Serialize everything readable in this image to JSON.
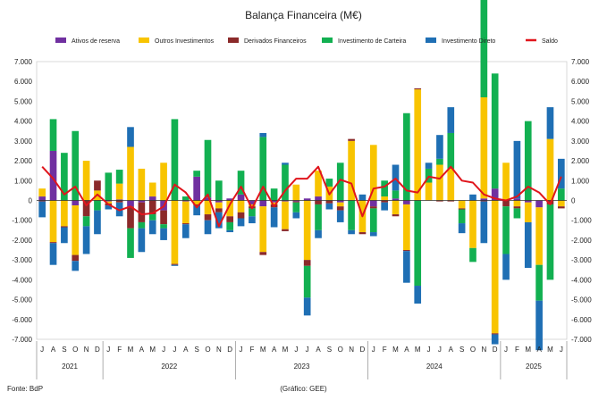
{
  "chart_data": {
    "type": "bar",
    "title": "Balança Financeira (M€)",
    "ylim": [
      -7000,
      7000
    ],
    "y_ticks": [
      "-7.000",
      "-6.000",
      "-5.000",
      "-4.000",
      "-3.000",
      "-2.000",
      "-1.000",
      "0",
      "1.000",
      "2.000",
      "3.000",
      "4.000",
      "5.000",
      "6.000",
      "7.000"
    ],
    "x_month_labels": [
      "J",
      "A",
      "S",
      "O",
      "N",
      "D",
      "J",
      "F",
      "M",
      "A",
      "M",
      "J",
      "J",
      "A",
      "S",
      "O",
      "N",
      "D",
      "J",
      "F",
      "M",
      "A",
      "M",
      "J",
      "J",
      "A",
      "S",
      "O",
      "N",
      "D",
      "J",
      "F",
      "M",
      "A",
      "M",
      "J",
      "J",
      "A",
      "S",
      "O",
      "N",
      "D",
      "J",
      "F",
      "M",
      "A",
      "M",
      "J"
    ],
    "year_labels": [
      "2021",
      "2022",
      "2023",
      "2024",
      "2025"
    ],
    "year_sizes": [
      6,
      12,
      12,
      12,
      6
    ],
    "legend_position": "top",
    "series": [
      {
        "name": "Ativos de reserva",
        "color": "#7030A0",
        "values": [
          200,
          2500,
          0,
          -250,
          0,
          0,
          -50,
          50,
          -300,
          -100,
          200,
          -500,
          0,
          -50,
          1200,
          150,
          -100,
          100,
          300,
          -200,
          -300,
          -100,
          -50,
          -50,
          100,
          200,
          0,
          -100,
          0,
          0,
          -300,
          0,
          100,
          -200,
          0,
          0,
          0,
          0,
          0,
          0,
          100,
          600,
          0,
          100,
          -100,
          -350,
          0,
          0
        ]
      },
      {
        "name": "Outros Investimentos",
        "color": "#F8C400",
        "values": [
          400,
          -2100,
          -1300,
          -2500,
          2000,
          500,
          -100,
          800,
          2700,
          1600,
          700,
          1900,
          -3200,
          -1100,
          -200,
          -700,
          -300,
          -800,
          -600,
          -100,
          -2300,
          -100,
          -1400,
          800,
          -3000,
          1300,
          700,
          -200,
          3000,
          -1600,
          2800,
          200,
          -700,
          -2300,
          5600,
          900,
          1800,
          1600,
          -400,
          -2400,
          5100,
          -6700,
          1900,
          -300,
          -1000,
          -2900,
          3100,
          -300
        ]
      },
      {
        "name": "Derivados Financeiros",
        "color": "#8B2A2A",
        "values": [
          -50,
          -50,
          -50,
          -300,
          -800,
          500,
          -100,
          -100,
          -1100,
          -1000,
          -700,
          -700,
          -50,
          -50,
          -50,
          -300,
          -200,
          -300,
          -300,
          -100,
          -150,
          -150,
          -100,
          -50,
          -300,
          -200,
          -150,
          -200,
          100,
          -100,
          -100,
          -100,
          -100,
          -50,
          50,
          0,
          -50,
          -50,
          -50,
          0,
          -50,
          -50,
          -300,
          -100,
          0,
          0,
          -200,
          -100
        ]
      },
      {
        "name": "Investimento de Carteira",
        "color": "#12B051",
        "values": [
          0,
          1600,
          2400,
          3500,
          -500,
          -500,
          1400,
          700,
          -1500,
          -300,
          -300,
          -200,
          4100,
          200,
          300,
          2900,
          1000,
          -400,
          1200,
          -400,
          3200,
          600,
          1800,
          -500,
          -1600,
          -1300,
          400,
          1900,
          -1500,
          0,
          -1200,
          800,
          400,
          4400,
          -4300,
          700,
          300,
          1800,
          -700,
          -700,
          5000,
          5800,
          -2400,
          -500,
          4000,
          -1800,
          -3800,
          600
        ]
      },
      {
        "name": "Investimento Direto",
        "color": "#1F6FB4",
        "values": [
          -800,
          -1100,
          -800,
          -500,
          -1400,
          -1200,
          -200,
          -700,
          1000,
          -1200,
          -700,
          -600,
          -50,
          -700,
          -500,
          -700,
          -800,
          -100,
          -400,
          -350,
          200,
          -1000,
          100,
          -300,
          -900,
          -400,
          -300,
          -600,
          -200,
          300,
          -200,
          -400,
          1300,
          -1600,
          -900,
          300,
          1200,
          1300,
          -500,
          300,
          -2100,
          -500,
          -1300,
          2900,
          -2300,
          -2500,
          1600,
          1500
        ]
      },
      {
        "name": "Saldo",
        "color": "#E0151C",
        "kind": "line",
        "values": [
          1700,
          1100,
          300,
          700,
          -250,
          300,
          -200,
          -500,
          -300,
          -700,
          -650,
          -300,
          800,
          400,
          -350,
          300,
          -1300,
          -200,
          700,
          -400,
          700,
          -300,
          500,
          1100,
          1100,
          1700,
          300,
          1050,
          850,
          -800,
          600,
          700,
          1100,
          500,
          400,
          1200,
          1100,
          1700,
          1000,
          900,
          300,
          100,
          0,
          200,
          700,
          400,
          -200,
          1200
        ]
      }
    ]
  },
  "notes": {
    "source": "Fonte: BdP",
    "credit": "(Gráfico: GEE)"
  }
}
